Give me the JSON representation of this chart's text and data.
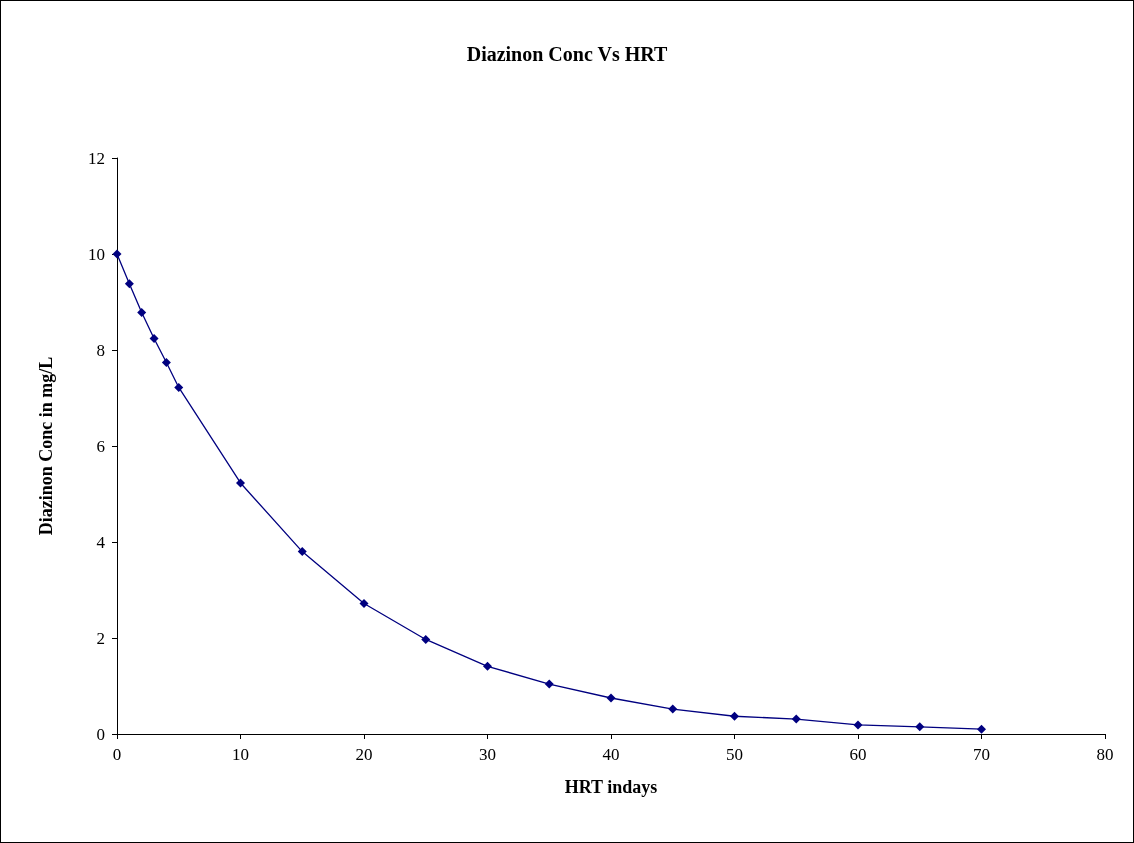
{
  "chart_data": {
    "type": "line",
    "title": "Diazinon Conc Vs HRT",
    "xlabel": "HRT indays",
    "ylabel": "Diazinon Conc in mg/L",
    "x": [
      0,
      1,
      2,
      3,
      4,
      5,
      10,
      15,
      20,
      25,
      30,
      35,
      40,
      45,
      50,
      55,
      60,
      65,
      70
    ],
    "series": [
      {
        "color": "#000080",
        "values": [
          10,
          9.38,
          8.78,
          8.24,
          7.74,
          7.22,
          5.23,
          3.8,
          2.72,
          1.97,
          1.41,
          1.04,
          0.75,
          0.52,
          0.37,
          0.31,
          0.19,
          0.15,
          0.1
        ]
      }
    ],
    "xlim": [
      0,
      80
    ],
    "xticks": [
      0,
      10,
      20,
      30,
      40,
      50,
      60,
      70,
      80
    ],
    "ylim": [
      0,
      12
    ],
    "yticks": [
      0,
      2,
      4,
      6,
      8,
      10,
      12
    ],
    "grid": false,
    "marker": "diamond",
    "line_style": "solid"
  }
}
